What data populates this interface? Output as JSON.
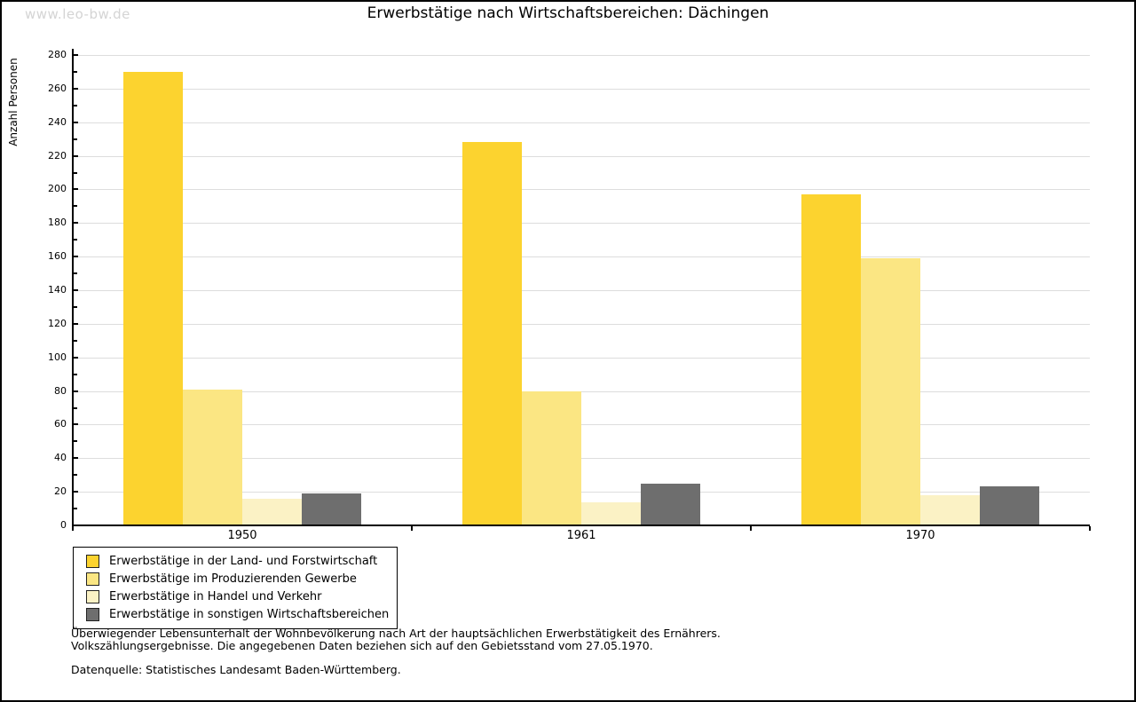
{
  "watermark": "www.leo-bw.de",
  "header": {
    "title": "Erwerbstätige nach Wirtschaftsbereichen: Dächingen"
  },
  "chart_data": {
    "type": "bar",
    "title": "Erwerbstätige nach Wirtschaftsbereichen: Dächingen",
    "xlabel": "",
    "ylabel": "Anzahl Personen",
    "ylim": [
      0,
      280
    ],
    "ytick_step": 20,
    "yminor_step": 10,
    "grid": true,
    "legend_position": "bottom-left",
    "categories": [
      "1950",
      "1961",
      "1970"
    ],
    "series": [
      {
        "name": "Erwerbstätige in der Land- und Forstwirtschaft",
        "color": "#FCD32F",
        "values": [
          270,
          228,
          197
        ]
      },
      {
        "name": "Erwerbstätige im Produzierenden Gewerbe",
        "color": "#FBE683",
        "values": [
          81,
          80,
          159
        ]
      },
      {
        "name": "Erwerbstätige in Handel und Verkehr",
        "color": "#FBF2C5",
        "values": [
          16,
          14,
          18
        ]
      },
      {
        "name": "Erwerbstätige in sonstigen Wirtschaftsbereichen",
        "color": "#6E6E6E",
        "values": [
          19,
          25,
          23
        ]
      }
    ]
  },
  "footnotes": {
    "line1": "Überwiegender Lebensunterhalt der Wohnbevölkerung nach Art der hauptsächlichen Erwerbstätigkeit des Ernährers.",
    "line2": "Volkszählungsergebnisse. Die angegebenen Daten beziehen sich auf den Gebietsstand vom 27.05.1970.",
    "source": "Datenquelle: Statistisches Landesamt Baden-Württemberg."
  },
  "colors": {
    "grid": "#DDDDDD",
    "axis": "#000000",
    "watermark": "#D4D4D4"
  }
}
